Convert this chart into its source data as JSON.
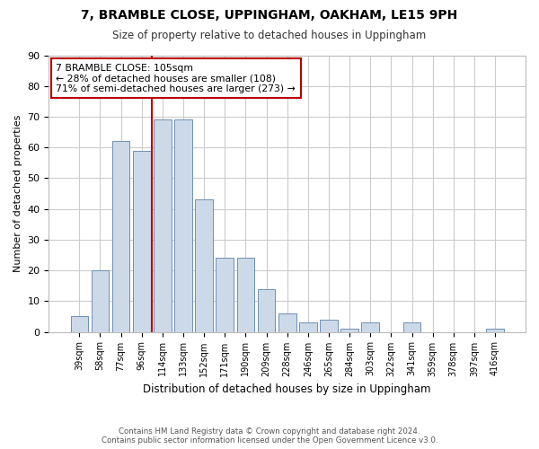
{
  "title1": "7, BRAMBLE CLOSE, UPPINGHAM, OAKHAM, LE15 9PH",
  "title2": "Size of property relative to detached houses in Uppingham",
  "xlabel": "Distribution of detached houses by size in Uppingham",
  "ylabel": "Number of detached properties",
  "categories": [
    "39sqm",
    "58sqm",
    "77sqm",
    "96sqm",
    "114sqm",
    "133sqm",
    "152sqm",
    "171sqm",
    "190sqm",
    "209sqm",
    "228sqm",
    "246sqm",
    "265sqm",
    "284sqm",
    "303sqm",
    "322sqm",
    "341sqm",
    "359sqm",
    "378sqm",
    "397sqm",
    "416sqm"
  ],
  "values": [
    5,
    20,
    62,
    59,
    69,
    69,
    43,
    24,
    24,
    14,
    6,
    3,
    4,
    1,
    3,
    0,
    3,
    0,
    0,
    0,
    1
  ],
  "bar_color": "#ccd9e8",
  "bar_edge_color": "#7090b0",
  "vline_x": 3.5,
  "vline_color": "#bb0000",
  "annotation_line1": "7 BRAMBLE CLOSE: 105sqm",
  "annotation_line2": "← 28% of detached houses are smaller (108)",
  "annotation_line3": "71% of semi-detached houses are larger (273) →",
  "annotation_box_color": "#bb0000",
  "ylim": [
    0,
    90
  ],
  "yticks": [
    0,
    10,
    20,
    30,
    40,
    50,
    60,
    70,
    80,
    90
  ],
  "footer1": "Contains HM Land Registry data © Crown copyright and database right 2024.",
  "footer2": "Contains public sector information licensed under the Open Government Licence v3.0.",
  "bg_color": "#ffffff",
  "plot_bg_color": "#ffffff",
  "grid_color": "#cccccc"
}
